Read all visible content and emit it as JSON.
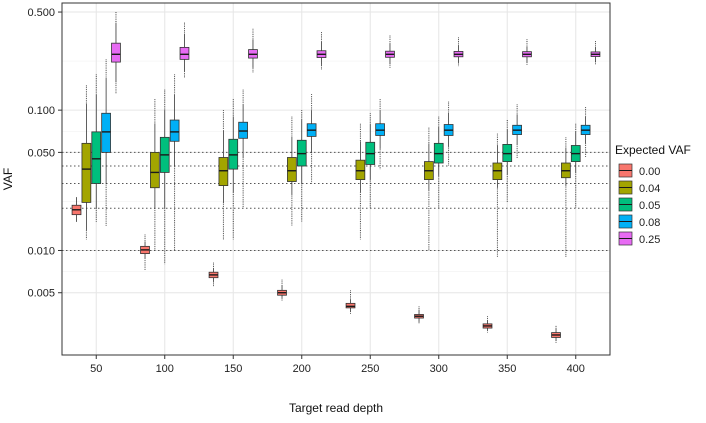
{
  "chart_data": {
    "type": "boxplot",
    "title": "",
    "xlabel": "Target read depth",
    "ylabel": "VAF",
    "yscale": "log",
    "ylim": [
      0.0018,
      0.58
    ],
    "yticks": [
      0.005,
      0.01,
      0.05,
      0.1,
      0.5
    ],
    "ytick_labels": [
      "0.005",
      "0.010",
      "0.050",
      "0.100",
      "0.500"
    ],
    "categories": [
      "50",
      "100",
      "150",
      "200",
      "250",
      "300",
      "350",
      "400"
    ],
    "reference_lines": [
      0.01,
      0.02,
      0.03,
      0.04,
      0.05
    ],
    "legend": {
      "title": "Expected VAF",
      "position": "right"
    },
    "series": [
      {
        "name": "0.00",
        "color": "#F8766D",
        "boxes": [
          {
            "min": 0.016,
            "q1": 0.018,
            "median": 0.0195,
            "q3": 0.021,
            "max": 0.024,
            "outlier_low": 0.016,
            "outlier_high": 0.024
          },
          {
            "min": 0.0088,
            "q1": 0.0095,
            "median": 0.0101,
            "q3": 0.0107,
            "max": 0.0116,
            "outlier_low": 0.0072,
            "outlier_high": 0.013
          },
          {
            "min": 0.006,
            "q1": 0.0064,
            "median": 0.0067,
            "q3": 0.007,
            "max": 0.0075,
            "outlier_low": 0.0055,
            "outlier_high": 0.0082
          },
          {
            "min": 0.0046,
            "q1": 0.0048,
            "median": 0.005,
            "q3": 0.0052,
            "max": 0.0056,
            "outlier_low": 0.0044,
            "outlier_high": 0.0062
          },
          {
            "min": 0.0037,
            "q1": 0.0039,
            "median": 0.004,
            "q3": 0.0042,
            "max": 0.0045,
            "outlier_low": 0.0035,
            "outlier_high": 0.0052
          },
          {
            "min": 0.0031,
            "q1": 0.0033,
            "median": 0.0034,
            "q3": 0.0035,
            "max": 0.0038,
            "outlier_low": 0.003,
            "outlier_high": 0.004
          },
          {
            "min": 0.0027,
            "q1": 0.0028,
            "median": 0.0029,
            "q3": 0.003,
            "max": 0.0032,
            "outlier_low": 0.0026,
            "outlier_high": 0.0034
          },
          {
            "min": 0.0023,
            "q1": 0.0024,
            "median": 0.0025,
            "q3": 0.0026,
            "max": 0.0028,
            "outlier_low": 0.0022,
            "outlier_high": 0.0029
          }
        ]
      },
      {
        "name": "0.04",
        "color": "#A3A500",
        "boxes": [
          {
            "min": 0.014,
            "q1": 0.022,
            "median": 0.038,
            "q3": 0.058,
            "max": 0.11,
            "outlier_low": 0.012,
            "outlier_high": 0.15
          },
          {
            "min": 0.02,
            "q1": 0.028,
            "median": 0.036,
            "q3": 0.05,
            "max": 0.08,
            "outlier_low": 0.01,
            "outlier_high": 0.12
          },
          {
            "min": 0.022,
            "q1": 0.029,
            "median": 0.037,
            "q3": 0.046,
            "max": 0.072,
            "outlier_low": 0.012,
            "outlier_high": 0.1
          },
          {
            "min": 0.025,
            "q1": 0.031,
            "median": 0.037,
            "q3": 0.046,
            "max": 0.065,
            "outlier_low": 0.015,
            "outlier_high": 0.09
          },
          {
            "min": 0.026,
            "q1": 0.032,
            "median": 0.037,
            "q3": 0.044,
            "max": 0.06,
            "outlier_low": 0.012,
            "outlier_high": 0.08
          },
          {
            "min": 0.027,
            "q1": 0.032,
            "median": 0.037,
            "q3": 0.043,
            "max": 0.058,
            "outlier_low": 0.01,
            "outlier_high": 0.075
          },
          {
            "min": 0.028,
            "q1": 0.032,
            "median": 0.037,
            "q3": 0.042,
            "max": 0.056,
            "outlier_low": 0.009,
            "outlier_high": 0.068
          },
          {
            "min": 0.029,
            "q1": 0.033,
            "median": 0.037,
            "q3": 0.042,
            "max": 0.054,
            "outlier_low": 0.009,
            "outlier_high": 0.064
          }
        ]
      },
      {
        "name": "0.05",
        "color": "#00BF7D",
        "boxes": [
          {
            "min": 0.02,
            "q1": 0.03,
            "median": 0.045,
            "q3": 0.07,
            "max": 0.13,
            "outlier_low": 0.016,
            "outlier_high": 0.18
          },
          {
            "min": 0.02,
            "q1": 0.036,
            "median": 0.048,
            "q3": 0.064,
            "max": 0.1,
            "outlier_low": 0.008,
            "outlier_high": 0.14
          },
          {
            "min": 0.026,
            "q1": 0.038,
            "median": 0.048,
            "q3": 0.062,
            "max": 0.09,
            "outlier_low": 0.012,
            "outlier_high": 0.12
          },
          {
            "min": 0.03,
            "q1": 0.04,
            "median": 0.049,
            "q3": 0.061,
            "max": 0.085,
            "outlier_low": 0.016,
            "outlier_high": 0.1
          },
          {
            "min": 0.032,
            "q1": 0.041,
            "median": 0.049,
            "q3": 0.059,
            "max": 0.08,
            "outlier_low": 0.02,
            "outlier_high": 0.095
          },
          {
            "min": 0.034,
            "q1": 0.042,
            "median": 0.049,
            "q3": 0.058,
            "max": 0.076,
            "outlier_low": 0.02,
            "outlier_high": 0.09
          },
          {
            "min": 0.035,
            "q1": 0.043,
            "median": 0.049,
            "q3": 0.057,
            "max": 0.073,
            "outlier_low": 0.022,
            "outlier_high": 0.085
          },
          {
            "min": 0.036,
            "q1": 0.043,
            "median": 0.049,
            "q3": 0.056,
            "max": 0.07,
            "outlier_low": 0.02,
            "outlier_high": 0.08
          }
        ]
      },
      {
        "name": "0.08",
        "color": "#00B0F6",
        "boxes": [
          {
            "min": 0.03,
            "q1": 0.05,
            "median": 0.07,
            "q3": 0.095,
            "max": 0.17,
            "outlier_low": 0.015,
            "outlier_high": 0.23
          },
          {
            "min": 0.04,
            "q1": 0.06,
            "median": 0.07,
            "q3": 0.085,
            "max": 0.13,
            "outlier_low": 0.01,
            "outlier_high": 0.18
          },
          {
            "min": 0.046,
            "q1": 0.063,
            "median": 0.071,
            "q3": 0.082,
            "max": 0.11,
            "outlier_low": 0.02,
            "outlier_high": 0.14
          },
          {
            "min": 0.05,
            "q1": 0.065,
            "median": 0.072,
            "q3": 0.08,
            "max": 0.1,
            "outlier_low": 0.03,
            "outlier_high": 0.13
          },
          {
            "min": 0.053,
            "q1": 0.066,
            "median": 0.072,
            "q3": 0.08,
            "max": 0.1,
            "outlier_low": 0.038,
            "outlier_high": 0.12
          },
          {
            "min": 0.055,
            "q1": 0.066,
            "median": 0.072,
            "q3": 0.079,
            "max": 0.096,
            "outlier_low": 0.04,
            "outlier_high": 0.115
          },
          {
            "min": 0.057,
            "q1": 0.067,
            "median": 0.072,
            "q3": 0.078,
            "max": 0.093,
            "outlier_low": 0.045,
            "outlier_high": 0.11
          },
          {
            "min": 0.058,
            "q1": 0.067,
            "median": 0.072,
            "q3": 0.078,
            "max": 0.09,
            "outlier_low": 0.046,
            "outlier_high": 0.105
          }
        ]
      },
      {
        "name": "0.25",
        "color": "#E76BF3",
        "boxes": [
          {
            "min": 0.16,
            "q1": 0.22,
            "median": 0.25,
            "q3": 0.3,
            "max": 0.42,
            "outlier_low": 0.13,
            "outlier_high": 0.5
          },
          {
            "min": 0.19,
            "q1": 0.23,
            "median": 0.25,
            "q3": 0.28,
            "max": 0.35,
            "outlier_low": 0.17,
            "outlier_high": 0.42
          },
          {
            "min": 0.2,
            "q1": 0.235,
            "median": 0.25,
            "q3": 0.27,
            "max": 0.32,
            "outlier_low": 0.185,
            "outlier_high": 0.38
          },
          {
            "min": 0.21,
            "q1": 0.237,
            "median": 0.25,
            "q3": 0.265,
            "max": 0.31,
            "outlier_low": 0.195,
            "outlier_high": 0.36
          },
          {
            "min": 0.215,
            "q1": 0.238,
            "median": 0.25,
            "q3": 0.263,
            "max": 0.3,
            "outlier_low": 0.2,
            "outlier_high": 0.34
          },
          {
            "min": 0.218,
            "q1": 0.24,
            "median": 0.25,
            "q3": 0.262,
            "max": 0.29,
            "outlier_low": 0.205,
            "outlier_high": 0.33
          },
          {
            "min": 0.22,
            "q1": 0.24,
            "median": 0.25,
            "q3": 0.261,
            "max": 0.285,
            "outlier_low": 0.21,
            "outlier_high": 0.32
          },
          {
            "min": 0.222,
            "q1": 0.241,
            "median": 0.25,
            "q3": 0.26,
            "max": 0.28,
            "outlier_low": 0.212,
            "outlier_high": 0.31
          }
        ]
      }
    ]
  }
}
